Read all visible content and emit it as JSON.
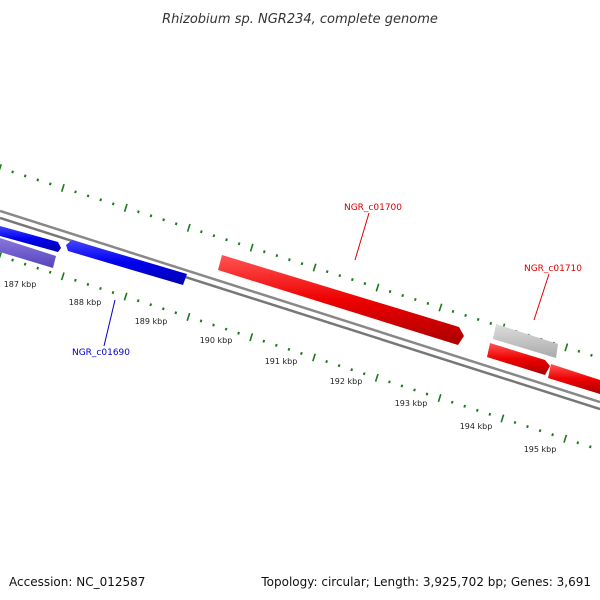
{
  "header": {
    "title": "Rhizobium sp. NGR234, complete genome"
  },
  "footer": {
    "accession": "Accession: NC_012587",
    "summary": "Topology: circular; Length: 3,925,702 bp; Genes: 3,691"
  },
  "map": {
    "tick_labels": [
      "187 kbp",
      "188 kbp",
      "189 kbp",
      "190 kbp",
      "191 kbp",
      "192 kbp",
      "193 kbp",
      "194 kbp",
      "195 kbp"
    ],
    "gene_labels": {
      "ngr_c01690": "NGR_c01690",
      "ngr_c01700": "NGR_c01700",
      "ngr_c01710": "NGR_c01710"
    },
    "colors": {
      "forward_gene": "#ee0000",
      "reverse_gene": "#0000ee",
      "reverse_gene_light": "#6655cc",
      "other_feature": "#bbbbbb",
      "backbone": "#888888",
      "ticks": "#1a7a1a"
    }
  }
}
